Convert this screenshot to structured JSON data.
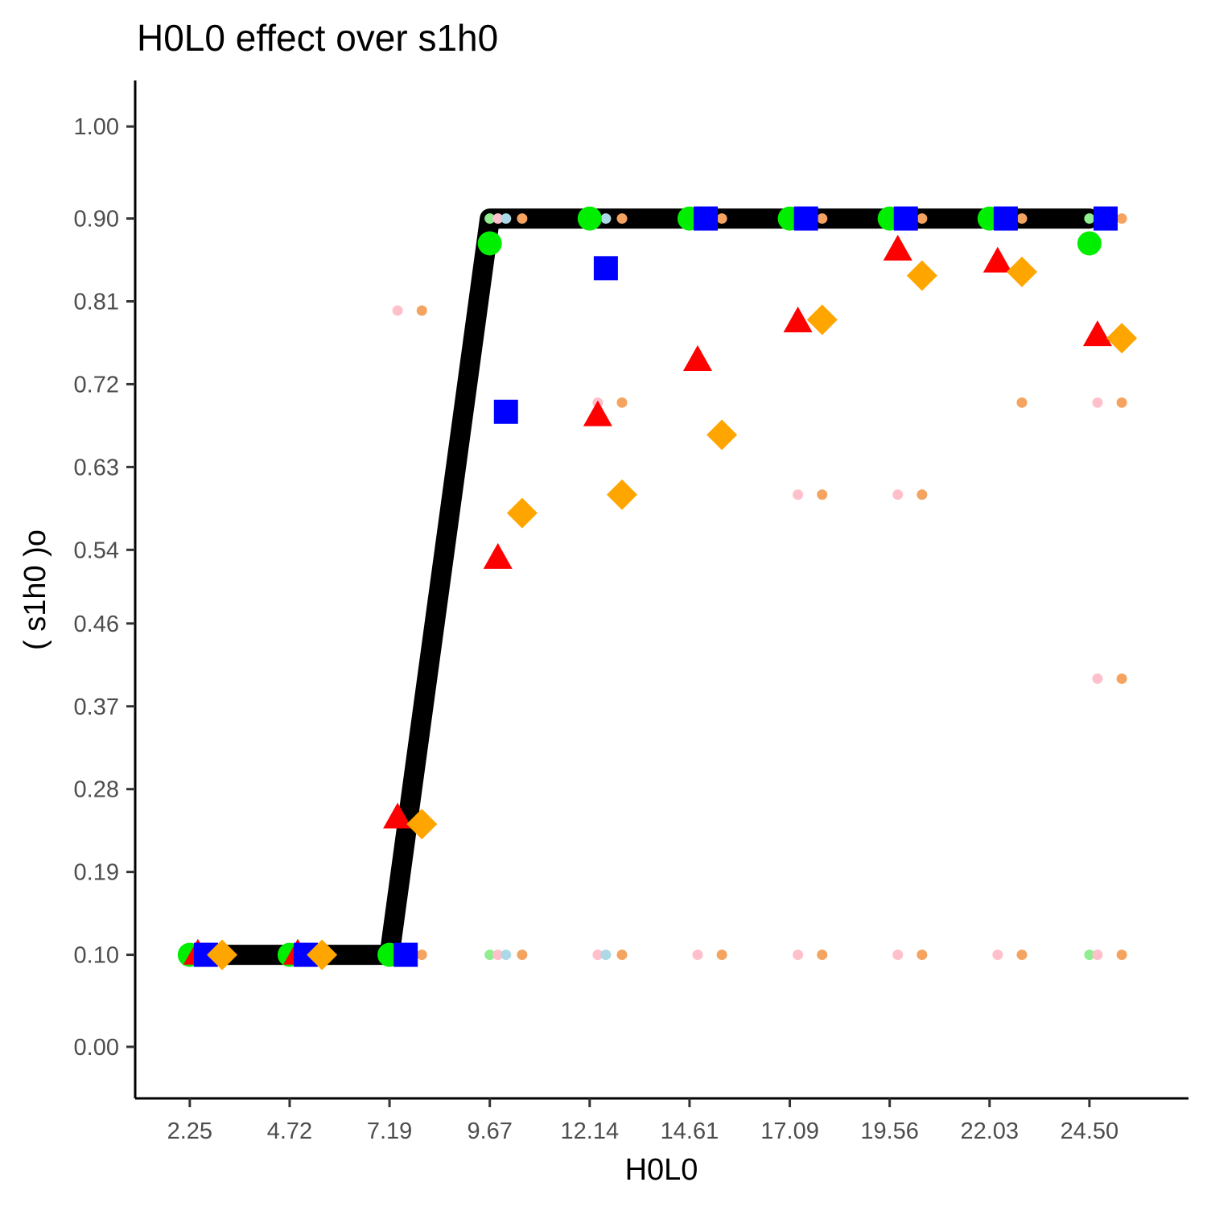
{
  "chart_data": {
    "type": "line",
    "title": "H0L0 effect over  s1h0",
    "xlabel": "H0L0",
    "ylabel": "( s1h0 )o",
    "x_ticks": [
      "2.25",
      "4.72",
      "7.19",
      "9.67",
      "12.14",
      "14.61",
      "17.09",
      "19.56",
      "22.03",
      "24.50"
    ],
    "y_ticks": [
      "0.00",
      "0.10",
      "0.19",
      "0.28",
      "0.37",
      "0.46",
      "0.54",
      "0.63",
      "0.72",
      "0.81",
      "0.90",
      "1.00"
    ],
    "xlim": [
      0.9,
      26.95
    ],
    "ylim": [
      -0.056,
      1.05
    ],
    "grid": false,
    "legend": "none",
    "series": [
      {
        "kind": "line",
        "color": "#000000",
        "x": [
          2.25,
          4.72,
          7.19,
          9.67,
          12.14,
          14.61,
          17.09,
          19.56,
          22.03,
          24.5
        ],
        "y": [
          0.1,
          0.1,
          0.1,
          0.9,
          0.9,
          0.9,
          0.9,
          0.9,
          0.9,
          0.9
        ]
      },
      {
        "kind": "circle",
        "color": "#00ee00",
        "x": [
          2.25,
          4.72,
          7.19,
          9.67,
          12.14,
          14.61,
          17.09,
          19.56,
          22.03,
          24.5
        ],
        "y": [
          0.1,
          0.1,
          0.1,
          0.873,
          0.9,
          0.9,
          0.9,
          0.9,
          0.9,
          0.873
        ]
      },
      {
        "kind": "triangle",
        "color": "#ff0000",
        "x": [
          2.45,
          4.92,
          7.39,
          9.87,
          12.34,
          14.81,
          17.29,
          19.76,
          22.23,
          24.7
        ],
        "y": [
          0.1,
          0.1,
          0.248,
          0.53,
          0.685,
          0.745,
          0.787,
          0.865,
          0.852,
          0.772
        ]
      },
      {
        "kind": "square",
        "color": "#0000ff",
        "x": [
          2.65,
          5.12,
          7.59,
          10.07,
          12.54,
          15.01,
          17.49,
          19.96,
          22.43,
          24.9
        ],
        "y": [
          0.1,
          0.1,
          0.1,
          0.69,
          0.846,
          0.9,
          0.9,
          0.9,
          0.9,
          0.9
        ]
      },
      {
        "kind": "diamond",
        "color": "#ffa500",
        "x": [
          3.05,
          5.52,
          7.99,
          10.47,
          12.94,
          15.41,
          17.89,
          20.36,
          22.83,
          25.3
        ],
        "y": [
          0.1,
          0.1,
          0.242,
          0.58,
          0.6,
          0.665,
          0.79,
          0.838,
          0.842,
          0.77
        ]
      },
      {
        "kind": "dot",
        "color": "#90ee90",
        "x": [
          9.67,
          24.5,
          9.67,
          24.5
        ],
        "y": [
          0.9,
          0.9,
          0.1,
          0.1
        ]
      },
      {
        "kind": "dot",
        "color": "#ffc0cb",
        "x": [
          7.39,
          9.87,
          12.34,
          17.29,
          19.76,
          24.7,
          24.7,
          9.87,
          12.34,
          14.81,
          17.29,
          19.76,
          22.23,
          24.7
        ],
        "y": [
          0.8,
          0.9,
          0.7,
          0.6,
          0.6,
          0.7,
          0.4,
          0.1,
          0.1,
          0.1,
          0.1,
          0.1,
          0.1,
          0.1
        ]
      },
      {
        "kind": "dot",
        "color": "#add8e6",
        "x": [
          10.07,
          12.54,
          10.07,
          12.54
        ],
        "y": [
          0.9,
          0.9,
          0.1,
          0.1
        ]
      },
      {
        "kind": "dot",
        "color": "#f4a460",
        "x": [
          7.99,
          10.47,
          12.94,
          15.41,
          17.89,
          20.36,
          22.83,
          25.3,
          12.94,
          22.83,
          25.3,
          17.89,
          20.36,
          25.3,
          7.99,
          10.47,
          12.94,
          15.41,
          17.89,
          20.36,
          22.83,
          25.3
        ],
        "y": [
          0.8,
          0.9,
          0.9,
          0.9,
          0.9,
          0.9,
          0.9,
          0.9,
          0.7,
          0.7,
          0.7,
          0.6,
          0.6,
          0.4,
          0.1,
          0.1,
          0.1,
          0.1,
          0.1,
          0.1,
          0.1,
          0.1
        ]
      }
    ]
  }
}
